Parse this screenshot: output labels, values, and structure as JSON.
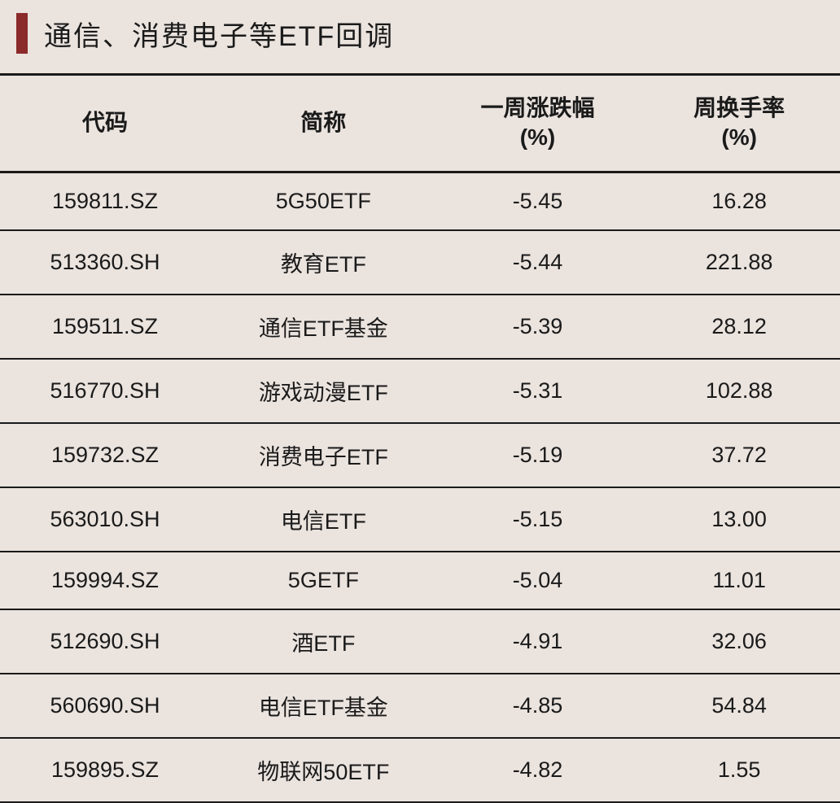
{
  "title": "通信、消费电子等ETF回调",
  "colors": {
    "accent": "#8b2a2a",
    "background": "#eae3de",
    "text": "#1a1a1a",
    "border": "#1a1a1a"
  },
  "table": {
    "columns": [
      {
        "key": "code",
        "label": "代码",
        "width": "25%"
      },
      {
        "key": "name",
        "label": "简称",
        "width": "27%"
      },
      {
        "key": "change",
        "label": "一周涨跌幅(%)",
        "width": "24%"
      },
      {
        "key": "turnover",
        "label": "周换手率(%)",
        "width": "24%"
      }
    ],
    "header_labels": {
      "code": "代码",
      "name": "简称",
      "change_line1": "一周涨跌幅",
      "change_line2": "(%)",
      "turnover_line1": "周换手率",
      "turnover_line2": "(%)"
    },
    "rows": [
      {
        "code": "159811.SZ",
        "name": "5G50ETF",
        "change": "-5.45",
        "turnover": "16.28"
      },
      {
        "code": "513360.SH",
        "name": "教育ETF",
        "change": "-5.44",
        "turnover": "221.88"
      },
      {
        "code": "159511.SZ",
        "name": "通信ETF基金",
        "change": "-5.39",
        "turnover": "28.12"
      },
      {
        "code": "516770.SH",
        "name": "游戏动漫ETF",
        "change": "-5.31",
        "turnover": "102.88"
      },
      {
        "code": "159732.SZ",
        "name": "消费电子ETF",
        "change": "-5.19",
        "turnover": "37.72"
      },
      {
        "code": "563010.SH",
        "name": "电信ETF",
        "change": "-5.15",
        "turnover": "13.00"
      },
      {
        "code": "159994.SZ",
        "name": "5GETF",
        "change": "-5.04",
        "turnover": "11.01"
      },
      {
        "code": "512690.SH",
        "name": "酒ETF",
        "change": "-4.91",
        "turnover": "32.06"
      },
      {
        "code": "560690.SH",
        "name": "电信ETF基金",
        "change": "-4.85",
        "turnover": "54.84"
      },
      {
        "code": "159895.SZ",
        "name": "物联网50ETF",
        "change": "-4.82",
        "turnover": "1.55"
      }
    ]
  },
  "styling": {
    "title_fontsize": 34,
    "header_fontsize": 28,
    "cell_fontsize": 27,
    "header_border_width": 3,
    "row_border_width": 2,
    "accent_width": 14,
    "accent_height": 50
  }
}
